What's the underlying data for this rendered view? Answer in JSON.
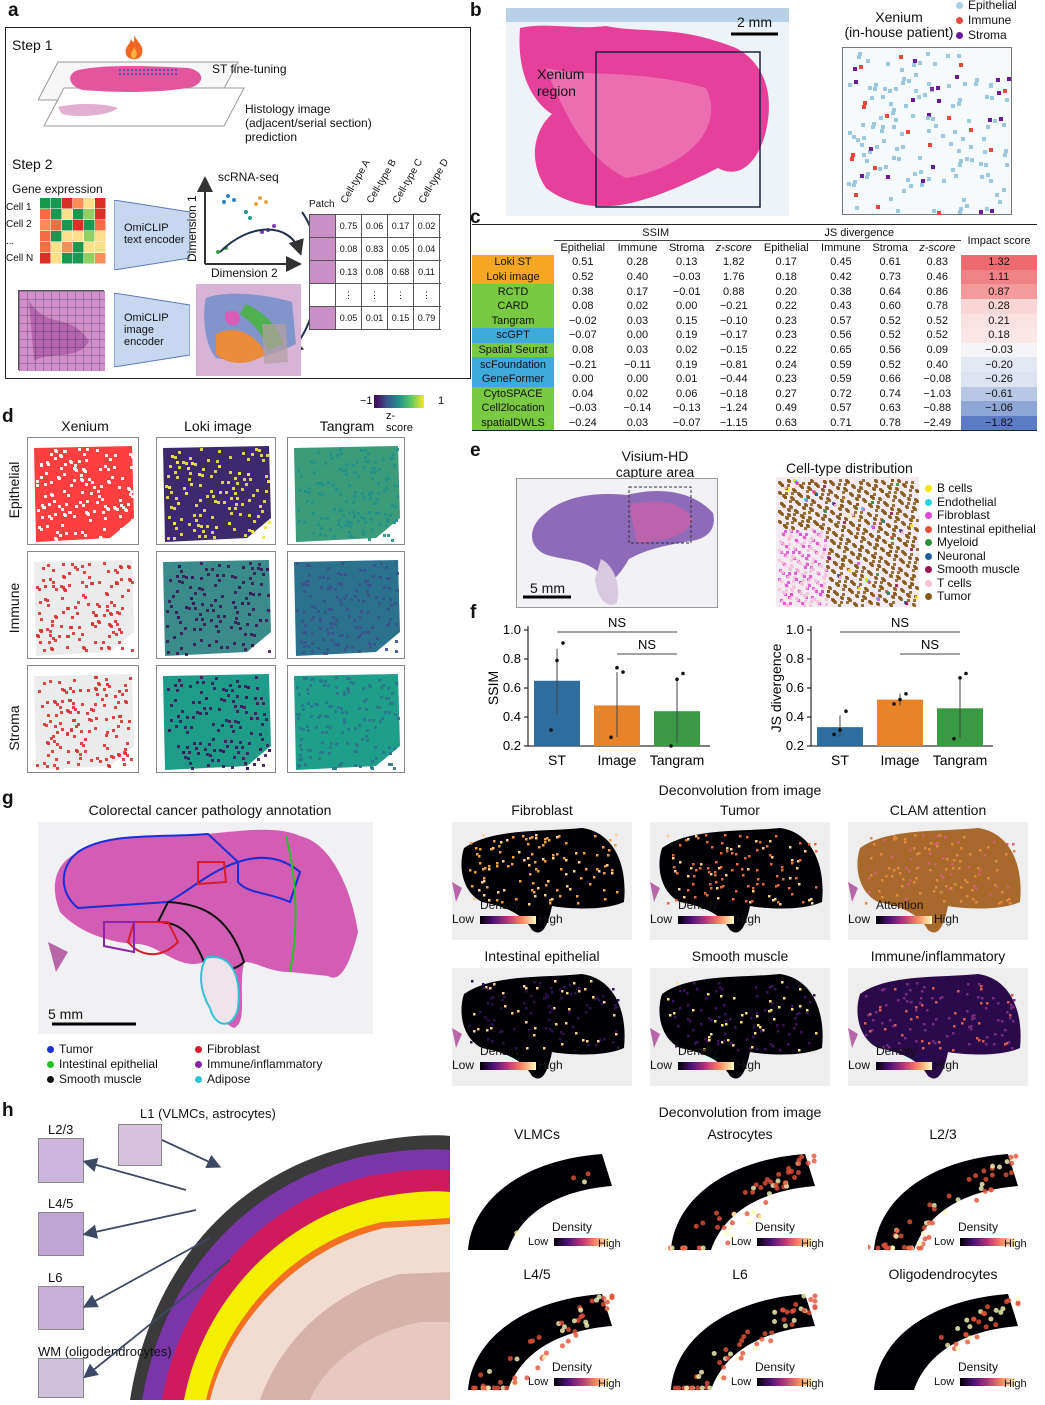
{
  "panels": {
    "a": "a",
    "b": "b",
    "c": "c",
    "d": "d",
    "e": "e",
    "f": "f",
    "g": "g",
    "h": "h"
  },
  "a": {
    "step1": "Step 1",
    "st_finetuning": "ST fine-tuning",
    "histology": "Histology image",
    "histology2": "(adjacent/serial section)",
    "histology3": "prediction",
    "step2": "Step 2",
    "gene_expression": "Gene expression",
    "cells": [
      "Cell 1",
      "Cell 2",
      "...",
      "Cell N"
    ],
    "text_encoder": [
      "OmiCLIP",
      "text encoder"
    ],
    "image_encoder": [
      "OmiCLIP",
      "image",
      "encoder"
    ],
    "scrna": "scRNA-seq",
    "dim1": "Dimension 1",
    "dim2": "Dimension 2",
    "patch": "Patch",
    "celltypes": [
      "Cell-type A",
      "Cell-type B",
      "Cell-type C",
      "Cell-type D"
    ],
    "matrix": [
      [
        "0.75",
        "0.06",
        "0.17",
        "0.02"
      ],
      [
        "0.08",
        "0.83",
        "0.05",
        "0.04"
      ],
      [
        "0.13",
        "0.08",
        "0.68",
        "0.11"
      ],
      [
        "⋮",
        "⋮",
        "⋮",
        "⋮"
      ],
      [
        "0.05",
        "0.01",
        "0.15",
        "0.79"
      ]
    ]
  },
  "b": {
    "scale": "2 mm",
    "xenium_region": [
      "Xenium",
      "region"
    ],
    "xenium_title": [
      "Xenium",
      "(in-house patient)"
    ],
    "legend": [
      {
        "label": "Epithelial",
        "color": "#a8cfe3"
      },
      {
        "label": "Immune",
        "color": "#e8493a"
      },
      {
        "label": "Stroma",
        "color": "#6a1b9a"
      }
    ]
  },
  "c": {
    "group_ssim": "SSIM",
    "group_js": "JS divergence",
    "impact": "Impact score",
    "cols": [
      "Epithelial",
      "Immune",
      "Stroma",
      "z-score",
      "Epithelial",
      "Immune",
      "Stroma",
      "z-score"
    ],
    "rows": [
      {
        "name": "Loki ST",
        "color": "#f5a623",
        "vals": [
          "0.51",
          "0.28",
          "0.13",
          "1.82",
          "0.17",
          "0.45",
          "0.61",
          "0.83"
        ],
        "impact": "1.32",
        "ic": "#ec6b6f"
      },
      {
        "name": "Loki image",
        "color": "#f5a623",
        "vals": [
          "0.52",
          "0.40",
          "−0.03",
          "1.76",
          "0.18",
          "0.42",
          "0.73",
          "0.46"
        ],
        "impact": "1.11",
        "ic": "#ef8286"
      },
      {
        "name": "RCTD",
        "color": "#7ac943",
        "vals": [
          "0.38",
          "0.17",
          "−0.01",
          "0.88",
          "0.20",
          "0.38",
          "0.64",
          "0.86"
        ],
        "impact": "0.87",
        "ic": "#f39a9c"
      },
      {
        "name": "CARD",
        "color": "#7ac943",
        "vals": [
          "0.08",
          "0.02",
          "0.00",
          "−0.21",
          "0.22",
          "0.43",
          "0.60",
          "0.78"
        ],
        "impact": "0.28",
        "ic": "#f9d6d6"
      },
      {
        "name": "Tangram",
        "color": "#7ac943",
        "vals": [
          "−0.02",
          "0.03",
          "0.15",
          "−0.10",
          "0.23",
          "0.57",
          "0.52",
          "0.52"
        ],
        "impact": "0.21",
        "ic": "#fbe2e2"
      },
      {
        "name": "scGPT",
        "color": "#3fa9dc",
        "vals": [
          "−0.07",
          "0.00",
          "0.19",
          "−0.17",
          "0.23",
          "0.56",
          "0.52",
          "0.52"
        ],
        "impact": "0.18",
        "ic": "#fce6e6"
      },
      {
        "name": "Spatial Seurat",
        "color": "#7ac943",
        "vals": [
          "0.08",
          "0.03",
          "0.02",
          "−0.15",
          "0.22",
          "0.65",
          "0.56",
          "0.09"
        ],
        "impact": "−0.03",
        "ic": "#f5f5f8"
      },
      {
        "name": "scFoundation",
        "color": "#3fa9dc",
        "vals": [
          "−0.21",
          "−0.11",
          "0.19",
          "−0.81",
          "0.24",
          "0.59",
          "0.52",
          "0.40"
        ],
        "impact": "−0.20",
        "ic": "#e3e8f3"
      },
      {
        "name": "GeneFormer",
        "color": "#3fa9dc",
        "vals": [
          "0.00",
          "0.00",
          "0.01",
          "−0.44",
          "0.23",
          "0.59",
          "0.66",
          "−0.08"
        ],
        "impact": "−0.26",
        "ic": "#dde3f1"
      },
      {
        "name": "CytoSPACE",
        "color": "#7ac943",
        "vals": [
          "0.04",
          "0.02",
          "0.06",
          "−0.18",
          "0.27",
          "0.72",
          "0.74",
          "−1.03"
        ],
        "impact": "−0.61",
        "ic": "#b9c7e6"
      },
      {
        "name": "Cell2location",
        "color": "#7ac943",
        "vals": [
          "−0.03",
          "−0.14",
          "−0.13",
          "−1.24",
          "0.49",
          "0.57",
          "0.63",
          "−0.88"
        ],
        "impact": "−1.06",
        "ic": "#8ea6d6"
      },
      {
        "name": "spatialDWLS",
        "color": "#7ac943",
        "vals": [
          "−0.24",
          "0.03",
          "−0.07",
          "−1.15",
          "0.63",
          "0.71",
          "0.78",
          "−2.49"
        ],
        "impact": "−1.82",
        "ic": "#5b7cc4"
      }
    ]
  },
  "d": {
    "cols": [
      "Xenium",
      "Loki image",
      "Tangram"
    ],
    "rows": [
      "Epithelial",
      "Immune",
      "Stroma"
    ],
    "cb_min": "−1",
    "cb_max": "1",
    "cb_label": "z-score"
  },
  "e": {
    "visium": [
      "Visium-HD",
      "capture area"
    ],
    "scale": "5 mm",
    "celltype_title": "Cell-type distribution",
    "legend": [
      {
        "label": "B cells",
        "color": "#f2e600"
      },
      {
        "label": "Endothelial",
        "color": "#29d3e3"
      },
      {
        "label": "Fibroblast",
        "color": "#e14ad9"
      },
      {
        "label": "Intestinal epithelial",
        "color": "#e84e40"
      },
      {
        "label": "Myeloid",
        "color": "#2f8f3a"
      },
      {
        "label": "Neuronal",
        "color": "#1f5fa0"
      },
      {
        "label": "Smooth muscle",
        "color": "#9c1250"
      },
      {
        "label": "T cells",
        "color": "#f5c2d8"
      },
      {
        "label": "Tumor",
        "color": "#8a5a1c"
      }
    ]
  },
  "f": {
    "ns": "NS",
    "chart_data": [
      {
        "type": "bar",
        "categories": [
          "ST",
          "Image",
          "Tangram"
        ],
        "values": [
          0.65,
          0.48,
          0.44
        ],
        "err": [
          [
            0.42,
            0.87
          ],
          [
            0.26,
            0.71
          ],
          [
            0.22,
            0.67
          ]
        ],
        "points": [
          [
            0.31,
            0.79,
            0.91
          ],
          [
            0.26,
            0.74,
            0.71
          ],
          [
            0.2,
            0.66,
            0.7
          ]
        ],
        "ylabel": "SSIM",
        "ylim": [
          0.2,
          1.0
        ],
        "yticks": [
          "0.2",
          "0.4",
          "0.6",
          "0.8",
          "1.0"
        ],
        "colors": [
          "#2e6d9e",
          "#e8832a",
          "#3a9a44"
        ]
      },
      {
        "type": "bar",
        "categories": [
          "ST",
          "Image",
          "Tangram"
        ],
        "values": [
          0.33,
          0.52,
          0.46
        ],
        "err": [
          [
            0.26,
            0.41
          ],
          [
            0.48,
            0.56
          ],
          [
            0.25,
            0.67
          ]
        ],
        "points": [
          [
            0.28,
            0.31,
            0.44
          ],
          [
            0.49,
            0.52,
            0.56
          ],
          [
            0.25,
            0.67,
            0.7
          ]
        ],
        "ylabel": "JS divergence",
        "ylim": [
          0.2,
          1.0
        ],
        "yticks": [
          "0.2",
          "0.4",
          "0.6",
          "0.8",
          "1.0"
        ],
        "colors": [
          "#2e6d9e",
          "#e8832a",
          "#3a9a44"
        ]
      }
    ]
  },
  "g": {
    "title": "Colorectal cancer pathology annotation",
    "deconv": "Deconvolution from image",
    "scale": "5 mm",
    "legend": [
      {
        "label": "Tumor",
        "color": "#1a2fd6"
      },
      {
        "label": "Intestinal epithelial",
        "color": "#22c322"
      },
      {
        "label": "Smooth muscle",
        "color": "#111111"
      },
      {
        "label": "Fibroblast",
        "color": "#d51c2b"
      },
      {
        "label": "Immune/inflammatory",
        "color": "#8b24a8"
      },
      {
        "label": "Adipose",
        "color": "#32c2d4"
      }
    ],
    "maps": [
      {
        "title": "Fibroblast",
        "scale": "Density"
      },
      {
        "title": "Tumor",
        "scale": "Density"
      },
      {
        "title": "CLAM attention",
        "scale": "Attention"
      },
      {
        "title": "Intestinal epithelial",
        "scale": "Density"
      },
      {
        "title": "Smooth muscle",
        "scale": "Density"
      },
      {
        "title": "Immune/inflammatory",
        "scale": "Density"
      }
    ],
    "low": "Low",
    "high": "High"
  },
  "h": {
    "labels": [
      "L2/3",
      "L1 (VLMCs, astrocytes)",
      "L4/5",
      "L6",
      "WM (oligodendrocytes)"
    ],
    "deconv": "Deconvolution from image",
    "maps": [
      "VLMCs",
      "Astrocytes",
      "L2/3",
      "L4/5",
      "L6",
      "Oligodendrocytes"
    ],
    "scale": "Density",
    "low": "Low",
    "high": "High"
  }
}
